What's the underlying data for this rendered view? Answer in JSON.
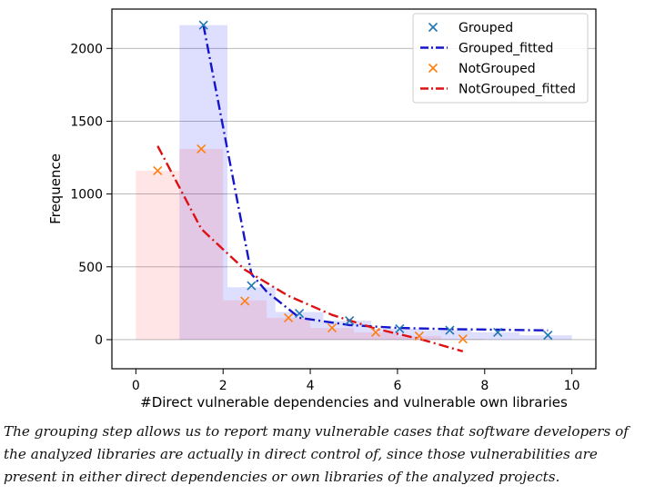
{
  "chart_data": {
    "type": "bar",
    "xlabel": "#Direct vulnerable dependencies and vulnerable own libraries",
    "ylabel": "Frequence",
    "xlim": [
      -0.55,
      10.55
    ],
    "ylim": [
      -200,
      2270
    ],
    "xticks": [
      "0",
      "2",
      "4",
      "6",
      "8",
      "10"
    ],
    "xtick_values": [
      0,
      2,
      4,
      6,
      8,
      10
    ],
    "yticks": [
      "0",
      "500",
      "1000",
      "1500",
      "2000"
    ],
    "ytick_values": [
      0,
      500,
      1000,
      1500,
      2000
    ],
    "grid": "horizontal",
    "legend_position": "top-right",
    "histograms": [
      {
        "name": "Grouped",
        "color": "#0000ff",
        "opacity": 0.13,
        "bins": [
          {
            "x0": 1.0,
            "x1": 2.1,
            "value": 2160
          },
          {
            "x0": 2.1,
            "x1": 3.2,
            "value": 360
          },
          {
            "x0": 3.2,
            "x1": 4.3,
            "value": 190
          },
          {
            "x0": 4.3,
            "x1": 5.4,
            "value": 130
          },
          {
            "x0": 5.4,
            "x1": 6.6,
            "value": 75
          },
          {
            "x0": 6.6,
            "x1": 7.7,
            "value": 65
          },
          {
            "x0": 7.7,
            "x1": 8.8,
            "value": 50
          },
          {
            "x0": 8.8,
            "x1": 10.0,
            "value": 30
          }
        ]
      },
      {
        "name": "NotGrouped",
        "color": "#ff3333",
        "opacity": 0.13,
        "bins": [
          {
            "x0": 0.0,
            "x1": 1.0,
            "value": 1160
          },
          {
            "x0": 1.0,
            "x1": 2.0,
            "value": 1310
          },
          {
            "x0": 2.0,
            "x1": 3.0,
            "value": 270
          },
          {
            "x0": 3.0,
            "x1": 4.0,
            "value": 150
          },
          {
            "x0": 4.0,
            "x1": 5.0,
            "value": 80
          },
          {
            "x0": 5.0,
            "x1": 6.0,
            "value": 50
          },
          {
            "x0": 6.0,
            "x1": 7.0,
            "value": 25
          },
          {
            "x0": 7.0,
            "x1": 8.0,
            "value": 5
          }
        ]
      }
    ],
    "series": [
      {
        "name": "Grouped",
        "kind": "scatter",
        "marker": "x",
        "color": "#1f77b4",
        "points": [
          [
            1.55,
            2160
          ],
          [
            2.65,
            370
          ],
          [
            3.75,
            180
          ],
          [
            4.9,
            130
          ],
          [
            6.05,
            75
          ],
          [
            7.2,
            65
          ],
          [
            8.3,
            50
          ],
          [
            9.45,
            30
          ]
        ]
      },
      {
        "name": "Grouped_fitted",
        "kind": "line",
        "dash": "dashdot",
        "color": "#1515cc",
        "points": [
          [
            1.55,
            2160
          ],
          [
            2.65,
            450
          ],
          [
            3.0,
            330
          ],
          [
            3.75,
            150
          ],
          [
            4.9,
            100
          ],
          [
            6.05,
            80
          ],
          [
            7.2,
            72
          ],
          [
            8.3,
            68
          ],
          [
            9.45,
            63
          ]
        ]
      },
      {
        "name": "NotGrouped",
        "kind": "scatter",
        "marker": "x",
        "color": "#ff7f0e",
        "points": [
          [
            0.5,
            1160
          ],
          [
            1.5,
            1310
          ],
          [
            2.5,
            265
          ],
          [
            3.5,
            150
          ],
          [
            4.5,
            80
          ],
          [
            5.5,
            50
          ],
          [
            6.5,
            25
          ],
          [
            7.5,
            5
          ]
        ]
      },
      {
        "name": "NotGrouped_fitted",
        "kind": "line",
        "dash": "dashdot",
        "color": "#dd1111",
        "points": [
          [
            0.5,
            1330
          ],
          [
            1.5,
            760
          ],
          [
            2.5,
            480
          ],
          [
            3.5,
            300
          ],
          [
            4.5,
            170
          ],
          [
            5.5,
            75
          ],
          [
            6.5,
            5
          ],
          [
            7.5,
            -80
          ]
        ]
      }
    ],
    "legend": [
      "Grouped",
      "Grouped_fitted",
      "NotGrouped",
      "NotGrouped_fitted"
    ]
  },
  "caption": "The grouping step allows us to report many vulnerable cases that software developers of the analyzed libraries are actually in direct control of, since those vulnerabilities are present in either direct dependencies or own libraries of the analyzed projects."
}
